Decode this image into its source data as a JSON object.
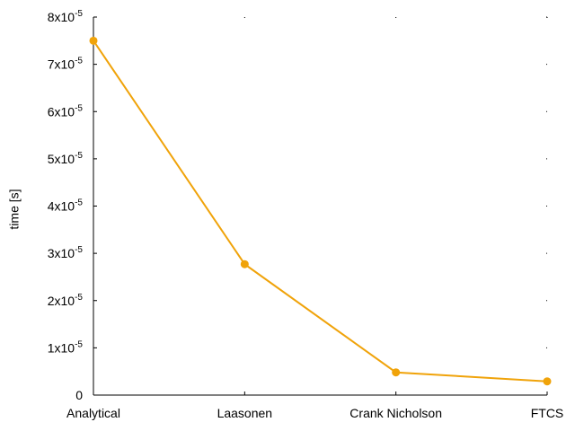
{
  "chart_data": {
    "type": "line",
    "categories": [
      "Analytical",
      "Laasonen",
      "Crank Nicholson",
      "FTCS"
    ],
    "series": [
      {
        "values": [
          7.5e-05,
          2.77e-05,
          4.8e-06,
          2.9e-06
        ],
        "color": "#f0a30a"
      }
    ],
    "ylabel": "time [s]",
    "ylim": [
      0,
      8e-05
    ],
    "yticks": [
      {
        "value": 0,
        "mantissa": "0",
        "exponent": ""
      },
      {
        "value": 1e-05,
        "mantissa": "1x10",
        "exponent": "-5"
      },
      {
        "value": 2e-05,
        "mantissa": "2x10",
        "exponent": "-5"
      },
      {
        "value": 3e-05,
        "mantissa": "3x10",
        "exponent": "-5"
      },
      {
        "value": 4e-05,
        "mantissa": "4x10",
        "exponent": "-5"
      },
      {
        "value": 5e-05,
        "mantissa": "5x10",
        "exponent": "-5"
      },
      {
        "value": 6e-05,
        "mantissa": "6x10",
        "exponent": "-5"
      },
      {
        "value": 7e-05,
        "mantissa": "7x10",
        "exponent": "-5"
      },
      {
        "value": 8e-05,
        "mantissa": "8x10",
        "exponent": "-5"
      }
    ],
    "grid": false
  }
}
